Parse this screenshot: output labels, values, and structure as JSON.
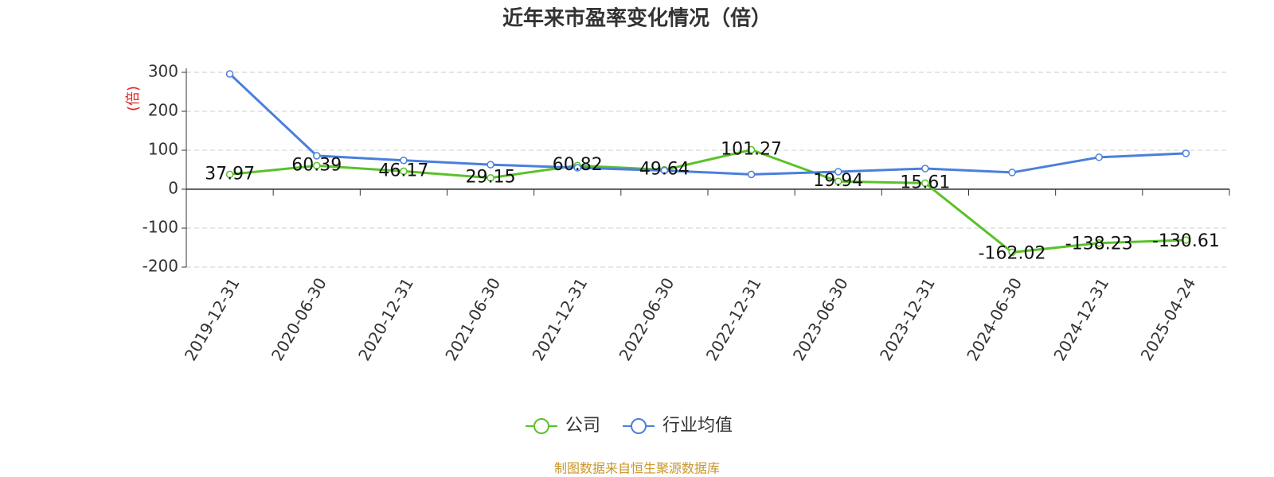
{
  "chart_data": {
    "type": "line",
    "title": "近年来市盈率变化情况（倍）",
    "y_label": "(倍)",
    "categories": [
      "2019-12-31",
      "2020-06-30",
      "2020-12-31",
      "2021-06-30",
      "2021-12-31",
      "2022-06-30",
      "2022-12-31",
      "2023-06-30",
      "2023-12-31",
      "2024-06-30",
      "2024-12-31",
      "2025-04-24"
    ],
    "series": [
      {
        "name": "公司",
        "color": "#5ac229",
        "values": [
          37.97,
          60.39,
          46.17,
          29.15,
          60.82,
          49.64,
          101.27,
          19.94,
          15.61,
          -162.02,
          -138.23,
          -130.61
        ]
      },
      {
        "name": "行业均值",
        "color": "#4a7fdc",
        "values": [
          296,
          86,
          74,
          63,
          55,
          48,
          38,
          45,
          53,
          43,
          82,
          92
        ]
      }
    ],
    "ylim": [
      -200,
      300
    ],
    "yticks": [
      -200,
      -100,
      0,
      100,
      200,
      300
    ],
    "grid": true,
    "source": "制图数据来自恒生聚源数据库"
  }
}
